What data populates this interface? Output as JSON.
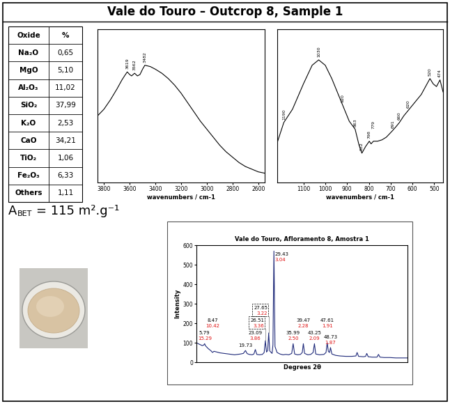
{
  "title": "Vale do Touro – Outcrop 8, Sample 1",
  "table": {
    "header": [
      "Oxide",
      "%"
    ],
    "rows": [
      [
        "Na₂O",
        "0,65"
      ],
      [
        "MgO",
        "5,10"
      ],
      [
        "Al₂O₃",
        "11,02"
      ],
      [
        "SiO₂",
        "37,99"
      ],
      [
        "K₂O",
        "2,53"
      ],
      [
        "CaO",
        "34,21"
      ],
      [
        "TiO₂",
        "1,06"
      ],
      [
        "Fe₂O₃",
        "6,33"
      ],
      [
        "Others",
        "1,11"
      ]
    ]
  },
  "bet": {
    "symbol": "A",
    "subscript": "BET",
    "text": "= 115 m².g⁻¹"
  },
  "chart_data": [
    {
      "type": "line",
      "xlabel": "wavenumbers / cm-1",
      "color": "#000000",
      "tick_labels": "x",
      "x": [
        3850,
        3800,
        3750,
        3700,
        3660,
        3640,
        3619,
        3600,
        3585,
        3562,
        3540,
        3520,
        3500,
        3482,
        3440,
        3400,
        3350,
        3300,
        3250,
        3200,
        3150,
        3100,
        3050,
        3000,
        2950,
        2900,
        2850,
        2800,
        2750,
        2700,
        2650,
        2600,
        2550
      ],
      "values": [
        0.5,
        0.55,
        0.62,
        0.7,
        0.77,
        0.8,
        0.83,
        0.81,
        0.8,
        0.82,
        0.8,
        0.81,
        0.85,
        0.88,
        0.87,
        0.85,
        0.82,
        0.78,
        0.73,
        0.67,
        0.6,
        0.53,
        0.46,
        0.4,
        0.34,
        0.28,
        0.23,
        0.19,
        0.15,
        0.12,
        0.1,
        0.08,
        0.07
      ],
      "xlim": [
        3850,
        2550
      ],
      "xticks": [
        3800,
        3600,
        3400,
        3200,
        3000,
        2800,
        2600
      ],
      "ylim": [
        0,
        1.15
      ],
      "annotations": [
        3619,
        3562,
        3482
      ]
    },
    {
      "type": "line",
      "xlabel": "wavenumbers / cm-1",
      "color": "#000000",
      "tick_labels": "x",
      "x": [
        1220,
        1190,
        1150,
        1100,
        1060,
        1030,
        1000,
        970,
        940,
        920,
        890,
        863,
        845,
        832,
        815,
        798,
        790,
        779,
        760,
        740,
        720,
        691,
        675,
        660,
        640,
        620,
        600,
        580,
        560,
        540,
        520,
        505,
        490,
        474,
        460
      ],
      "values": [
        0.3,
        0.45,
        0.55,
        0.74,
        0.88,
        0.92,
        0.88,
        0.78,
        0.66,
        0.58,
        0.46,
        0.4,
        0.28,
        0.22,
        0.27,
        0.31,
        0.29,
        0.31,
        0.31,
        0.32,
        0.34,
        0.39,
        0.42,
        0.45,
        0.5,
        0.54,
        0.58,
        0.62,
        0.66,
        0.72,
        0.78,
        0.74,
        0.72,
        0.77,
        0.68
      ],
      "xlim": [
        1220,
        460
      ],
      "xticks": [
        1100,
        1000,
        900,
        800,
        700,
        600,
        500
      ],
      "ylim": [
        0,
        1.15
      ],
      "annotations": [
        1190,
        1030,
        920,
        863,
        832,
        798,
        779,
        691,
        660,
        620,
        520,
        474
      ]
    },
    {
      "type": "line",
      "title": "Vale do Touro, Afloramento 8, Amostra 1",
      "xlabel": "Degrees 2θ",
      "ylabel": "Intensity",
      "color": "#1f2a7a",
      "tick_labels": "y",
      "x": [
        3,
        4,
        5,
        5.5,
        5.79,
        6.1,
        7,
        8,
        8.47,
        9,
        10,
        11,
        12,
        13,
        14,
        15,
        16,
        17,
        18,
        19,
        19.73,
        20.3,
        21,
        22,
        22.6,
        23.09,
        23.6,
        24.5,
        25.5,
        26.1,
        26.51,
        26.9,
        27.3,
        27.65,
        28.0,
        28.8,
        29.1,
        29.43,
        29.8,
        30.5,
        31.5,
        32.5,
        33.5,
        34.5,
        35.5,
        35.99,
        36.5,
        37.5,
        38.5,
        39.1,
        39.47,
        39.9,
        41,
        42,
        42.8,
        43.25,
        43.7,
        45,
        46.5,
        47.2,
        47.61,
        48.0,
        48.4,
        48.73,
        49.2,
        50.5,
        52,
        54,
        56,
        57.4,
        57.8,
        58.3,
        60,
        60.7,
        61.1,
        61.6,
        63,
        64.6,
        65.1,
        65.6,
        67,
        69,
        71,
        73,
        75
      ],
      "values": [
        100,
        92,
        85,
        88,
        95,
        84,
        70,
        58,
        50,
        56,
        52,
        48,
        46,
        44,
        42,
        40,
        38,
        40,
        42,
        45,
        60,
        44,
        40,
        38,
        42,
        65,
        40,
        38,
        40,
        50,
        110,
        52,
        60,
        150,
        58,
        45,
        90,
        570,
        80,
        50,
        42,
        38,
        40,
        38,
        45,
        95,
        42,
        38,
        40,
        50,
        95,
        45,
        38,
        40,
        50,
        95,
        42,
        38,
        40,
        50,
        100,
        55,
        50,
        75,
        42,
        35,
        32,
        30,
        30,
        32,
        50,
        30,
        28,
        30,
        45,
        28,
        26,
        26,
        40,
        26,
        24,
        24,
        22,
        22,
        22
      ],
      "xlim": [
        3,
        75
      ],
      "ylim": [
        0,
        600
      ],
      "yticks": [
        0,
        100,
        200,
        300,
        400,
        500,
        600
      ],
      "annotations": [
        {
          "x": 5.79,
          "d_spacing": "15.29"
        },
        {
          "x": 8.47,
          "d_spacing": "10.42"
        },
        {
          "x": 19.73
        },
        {
          "x": 23.09,
          "d_spacing": "3.86"
        },
        {
          "x": 26.51,
          "d_spacing": "3.36",
          "boxed": true
        },
        {
          "x": 27.65,
          "d_spacing": "3.22",
          "boxed": true
        },
        {
          "x": 29.43,
          "d_spacing": "3.04"
        },
        {
          "x": 35.99,
          "d_spacing": "2.50"
        },
        {
          "x": 39.47,
          "d_spacing": "2.28"
        },
        {
          "x": 43.25,
          "d_spacing": "2.09"
        },
        {
          "x": 47.61,
          "d_spacing": "1.91"
        },
        {
          "x": 48.73,
          "d_spacing": "1.87"
        }
      ]
    }
  ]
}
